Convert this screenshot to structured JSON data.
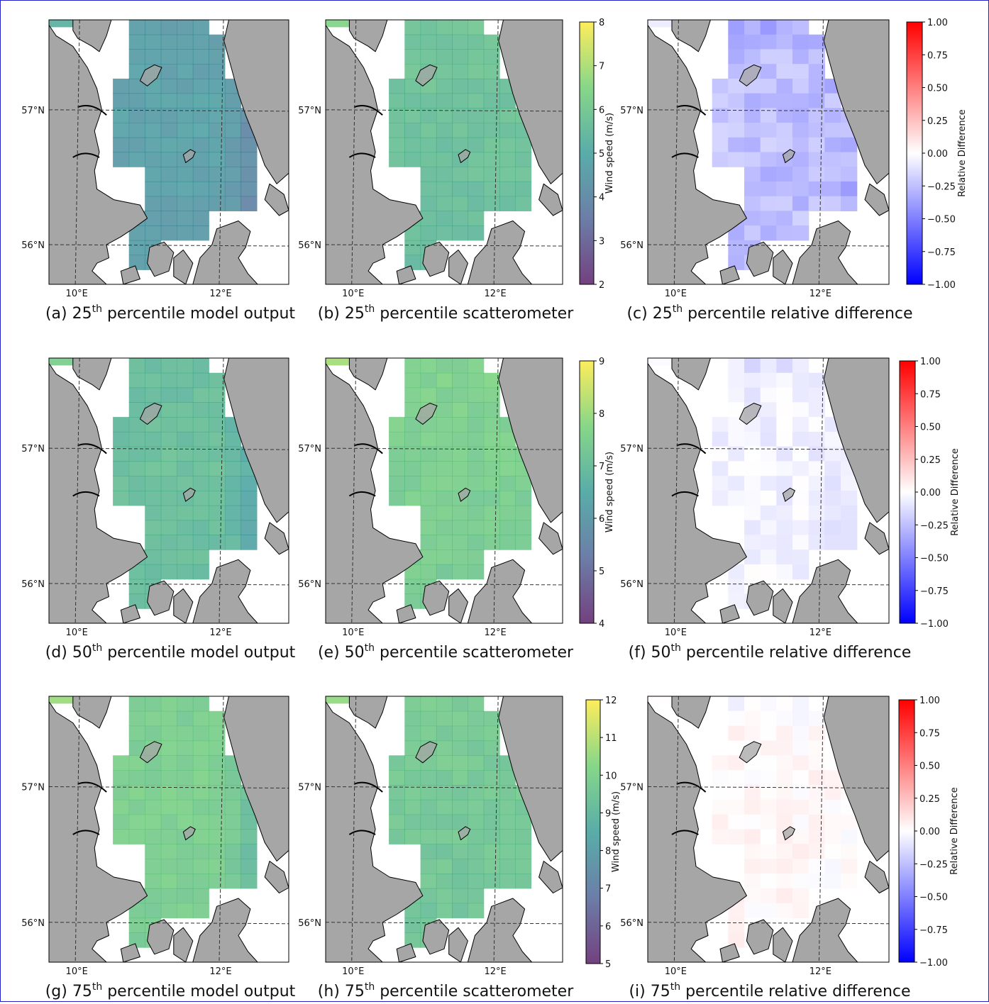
{
  "panels": [
    {
      "id": "a",
      "letter": "(a)",
      "pct": "25",
      "suffix": "th",
      "rest": " percentile model output",
      "type": "model",
      "scheme": "viridis",
      "lat_labels": [
        "57°N",
        "56°N"
      ],
      "lon_labels": [
        "10°E",
        "12°E"
      ],
      "mean": 0.42,
      "strength": 1.0,
      "mode": "model"
    },
    {
      "id": "b",
      "letter": "(b)",
      "pct": "25",
      "suffix": "th",
      "rest": " percentile scatterometer",
      "type": "scat",
      "scheme": "viridis",
      "lat_labels": [
        "57°N",
        "56°N"
      ],
      "lon_labels": [
        "10°E",
        "12°E"
      ],
      "mean": 0.62,
      "strength": 1.0,
      "mode": "scat"
    },
    {
      "id": "c",
      "letter": "(c)",
      "pct": "25",
      "suffix": "th",
      "rest": " percentile relative difference",
      "type": "diff",
      "scheme": "bwr",
      "lat_labels": [
        "57°N",
        "56°N"
      ],
      "lon_labels": [
        "10°E",
        "12°E"
      ],
      "mean": -0.25,
      "strength": 0.35,
      "mode": "diff"
    },
    {
      "id": "d",
      "letter": "(d)",
      "pct": "50",
      "suffix": "th",
      "rest": " percentile model output",
      "type": "model",
      "scheme": "viridis",
      "lat_labels": [
        "57°N",
        "56°N"
      ],
      "lon_labels": [
        "10°E",
        "12°E"
      ],
      "mean": 0.58,
      "strength": 1.0,
      "mode": "model"
    },
    {
      "id": "e",
      "letter": "(e)",
      "pct": "50",
      "suffix": "th",
      "rest": " percentile scatterometer",
      "type": "scat",
      "scheme": "viridis",
      "lat_labels": [
        "57°N",
        "56°N"
      ],
      "lon_labels": [
        "10°E",
        "12°E"
      ],
      "mean": 0.7,
      "strength": 1.0,
      "mode": "scat"
    },
    {
      "id": "f",
      "letter": "(f)",
      "pct": "50",
      "suffix": "th",
      "rest": " percentile relative difference",
      "type": "diff",
      "scheme": "bwr",
      "lat_labels": [
        "57°N",
        "56°N"
      ],
      "lon_labels": [
        "10°E",
        "12°E"
      ],
      "mean": -0.05,
      "strength": 0.25,
      "mode": "diff"
    },
    {
      "id": "g",
      "letter": "(g)",
      "pct": "75",
      "suffix": "th",
      "rest": " percentile model output",
      "type": "model",
      "scheme": "viridis",
      "lat_labels": [
        "57°N",
        "56°N"
      ],
      "lon_labels": [
        "10°E",
        "12°E"
      ],
      "mean": 0.68,
      "strength": 1.0,
      "mode": "model"
    },
    {
      "id": "h",
      "letter": "(h)",
      "pct": "75",
      "suffix": "th",
      "rest": " percentile scatterometer",
      "type": "scat",
      "scheme": "viridis",
      "lat_labels": [
        "57°N",
        "56°N"
      ],
      "lon_labels": [
        "10°E",
        "12°E"
      ],
      "mean": 0.66,
      "strength": 1.0,
      "mode": "scat"
    },
    {
      "id": "i",
      "letter": "(i)",
      "pct": "75",
      "suffix": "th",
      "rest": " percentile relative difference",
      "type": "diff",
      "scheme": "bwr",
      "lat_labels": [
        "57°N",
        "56°N"
      ],
      "lon_labels": [
        "10°E",
        "12°E"
      ],
      "mean": 0.03,
      "strength": 0.2,
      "mode": "diff"
    }
  ],
  "colorbars": [
    {
      "row": 0,
      "kind": "wind",
      "label": "Wind speed (m/s)",
      "ticks": [
        "8",
        "7",
        "6",
        "5",
        "4",
        "3",
        "2"
      ],
      "vmin": 2,
      "vmax": 8
    },
    {
      "row": 0,
      "kind": "diff",
      "label": "Relative Difference",
      "ticks": [
        "1.00",
        "0.75",
        "0.50",
        "0.25",
        "0.00",
        "−0.25",
        "−0.50",
        "−0.75",
        "−1.00"
      ],
      "vmin": -1,
      "vmax": 1
    },
    {
      "row": 1,
      "kind": "wind",
      "label": "Wind speed (m/s)",
      "ticks": [
        "9",
        "8",
        "7",
        "6",
        "5",
        "4"
      ],
      "vmin": 4,
      "vmax": 9
    },
    {
      "row": 1,
      "kind": "diff",
      "label": "Relative Difference",
      "ticks": [
        "1.00",
        "0.75",
        "0.50",
        "0.25",
        "0.00",
        "−0.25",
        "−0.50",
        "−0.75",
        "−1.00"
      ],
      "vmin": -1,
      "vmax": 1
    },
    {
      "row": 2,
      "kind": "wind",
      "label": "Wind speed (m/s)",
      "ticks": [
        "12",
        "11",
        "10",
        "9",
        "8",
        "7",
        "6",
        "5"
      ],
      "vmin": 5,
      "vmax": 12
    },
    {
      "row": 2,
      "kind": "diff",
      "label": "Relative Difference",
      "ticks": [
        "1.00",
        "0.75",
        "0.50",
        "0.25",
        "0.00",
        "−0.25",
        "−0.50",
        "−0.75",
        "−1.00"
      ],
      "vmin": -1,
      "vmax": 1
    }
  ],
  "colors": {
    "land": "#a6a6a6",
    "border": "#000000",
    "grid": "#333333"
  }
}
